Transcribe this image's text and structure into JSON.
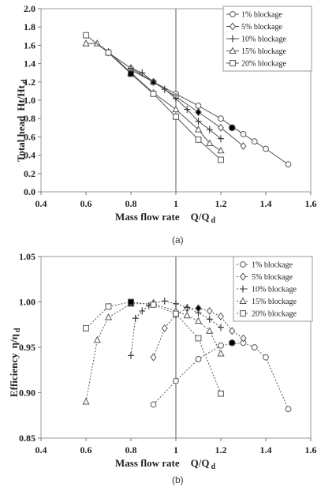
{
  "chart_data": [
    {
      "type": "line",
      "caption": "(a)",
      "xlabel": "Mass flow rate",
      "xlabel_sym": "Q/Q",
      "xlabel_sub": "d",
      "ylabel": "Total head",
      "ylabel_sym": "Ht/Ht",
      "ylabel_sub": "d",
      "xlim": [
        0.4,
        1.6
      ],
      "ylim": [
        0.0,
        2.0
      ],
      "xticks": [
        "0.4",
        "0.6",
        "0.8",
        "1",
        "1.2",
        "1.4",
        "1.6"
      ],
      "yticks": [
        "0.0",
        "0.2",
        "0.4",
        "0.6",
        "0.8",
        "1.0",
        "1.2",
        "1.4",
        "1.6",
        "1.8",
        "2.0"
      ],
      "ref_line_x": 1.0,
      "line_style": "solid",
      "legend_position": "top-right",
      "series": [
        {
          "name": "1% blockage",
          "marker": "circle",
          "x": [
            0.8,
            0.9,
            1.0,
            1.1,
            1.2,
            1.3,
            1.35,
            1.4,
            1.5
          ],
          "y": [
            1.33,
            1.2,
            1.07,
            0.94,
            0.8,
            0.63,
            0.55,
            0.47,
            0.3
          ],
          "design_point": [
            1.25,
            0.7
          ]
        },
        {
          "name": "5% blockage",
          "marker": "diamond",
          "x": [
            0.7,
            0.8,
            0.9,
            1.0,
            1.1,
            1.2,
            1.3
          ],
          "y": [
            1.52,
            1.35,
            1.2,
            1.04,
            0.87,
            0.7,
            0.5
          ],
          "design_point": [
            1.1,
            0.87
          ]
        },
        {
          "name": "10% blockage",
          "marker": "plus",
          "x": [
            0.8,
            0.85,
            0.9,
            0.95,
            1.0,
            1.05,
            1.1,
            1.15,
            1.2
          ],
          "y": [
            1.35,
            1.3,
            1.2,
            1.12,
            1.02,
            0.9,
            0.77,
            0.68,
            0.58
          ],
          "design_point": [
            0.9,
            1.2
          ]
        },
        {
          "name": "15% blockage",
          "marker": "triangle",
          "x": [
            0.6,
            0.65,
            0.7,
            0.8,
            0.9,
            1.0,
            1.1,
            1.15,
            1.2
          ],
          "y": [
            1.62,
            1.62,
            1.53,
            1.3,
            1.08,
            0.9,
            0.68,
            0.53,
            0.45
          ],
          "design_point": [
            0.8,
            1.3
          ]
        },
        {
          "name": "20% blockage",
          "marker": "square",
          "x": [
            0.6,
            0.7,
            0.8,
            0.9,
            1.0,
            1.1,
            1.2
          ],
          "y": [
            1.71,
            1.52,
            1.29,
            1.07,
            0.82,
            0.57,
            0.35
          ],
          "design_point": [
            0.8,
            1.29
          ]
        }
      ]
    },
    {
      "type": "line",
      "caption": "(b)",
      "xlabel": "Mass flow rate",
      "xlabel_sym": "Q/Q",
      "xlabel_sub": "d",
      "ylabel": "Efficiency",
      "ylabel_sym": "η/η",
      "ylabel_sub": "d",
      "xlim": [
        0.4,
        1.6
      ],
      "ylim": [
        0.85,
        1.05
      ],
      "xticks": [
        "0.4",
        "0.6",
        "0.8",
        "1",
        "1.2",
        "1.4",
        "1.6"
      ],
      "yticks": [
        "0.85",
        "0.90",
        "0.95",
        "1.00",
        "1.05"
      ],
      "ref_line_x": 1.0,
      "line_style": "dotted",
      "legend_position": "top-right",
      "series": [
        {
          "name": "1% blockage",
          "marker": "circle",
          "x": [
            0.9,
            1.0,
            1.1,
            1.2,
            1.3,
            1.35,
            1.4,
            1.5
          ],
          "y": [
            0.887,
            0.913,
            0.937,
            0.952,
            0.955,
            0.95,
            0.939,
            0.882
          ],
          "design_point": [
            1.25,
            0.955
          ]
        },
        {
          "name": "5% blockage",
          "marker": "diamond",
          "x": [
            0.9,
            0.95,
            1.0,
            1.05,
            1.1,
            1.15,
            1.2,
            1.25,
            1.3
          ],
          "y": [
            0.939,
            0.971,
            0.986,
            0.993,
            0.993,
            0.99,
            0.984,
            0.968,
            0.96
          ],
          "design_point": [
            1.1,
            0.993
          ]
        },
        {
          "name": "10% blockage",
          "marker": "plus",
          "x": [
            0.8,
            0.82,
            0.85,
            0.88,
            0.9,
            0.95,
            1.0,
            1.05,
            1.1,
            1.15,
            1.2
          ],
          "y": [
            0.941,
            0.982,
            0.99,
            0.996,
            0.999,
            1.001,
            0.998,
            0.994,
            0.988,
            0.981,
            0.972
          ],
          "design_point": [
            0.9,
            0.999
          ]
        },
        {
          "name": "15% blockage",
          "marker": "triangle",
          "x": [
            0.6,
            0.65,
            0.7,
            0.8,
            0.9,
            1.0,
            1.05,
            1.1,
            1.15,
            1.2
          ],
          "y": [
            0.89,
            0.958,
            0.983,
            0.998,
            0.998,
            0.99,
            0.985,
            0.979,
            0.968,
            0.943
          ],
          "design_point": [
            0.8,
            0.998
          ]
        },
        {
          "name": "20% blockage",
          "marker": "square",
          "x": [
            0.6,
            0.7,
            0.8,
            0.9,
            1.0,
            1.1,
            1.2
          ],
          "y": [
            0.971,
            0.995,
            1.0,
            0.997,
            0.987,
            0.96,
            0.899
          ],
          "design_point": [
            0.8,
            1.0
          ]
        }
      ]
    }
  ]
}
